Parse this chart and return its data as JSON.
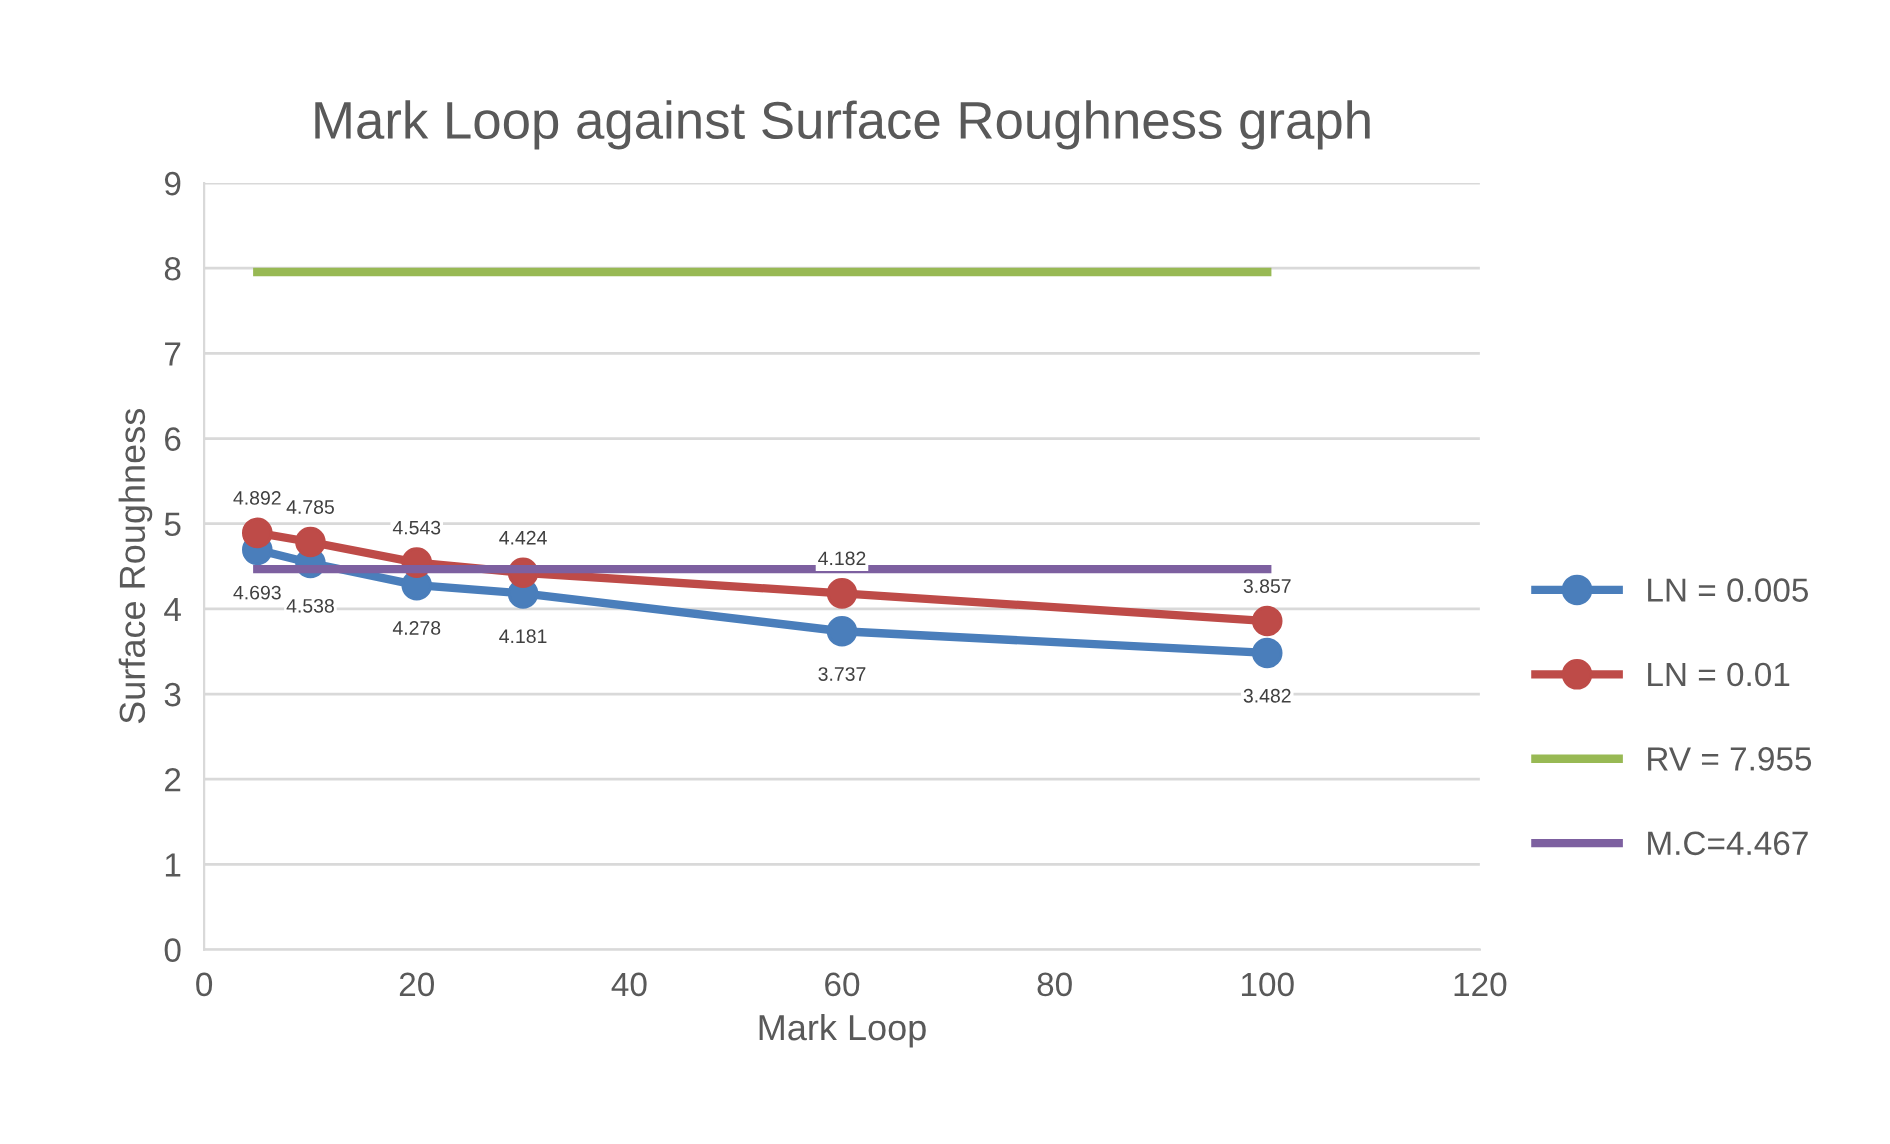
{
  "chart_data": {
    "type": "line",
    "title": "Mark Loop against Surface Roughness graph",
    "xlabel": "Mark Loop",
    "ylabel": "Surface Roughness",
    "xlim": [
      0,
      120
    ],
    "xticks": [
      0,
      20,
      40,
      60,
      80,
      100,
      120
    ],
    "ylim": [
      0,
      9
    ],
    "yticks": [
      0,
      1,
      2,
      3,
      4,
      5,
      6,
      7,
      8,
      9
    ],
    "grid": "y",
    "legend": "right",
    "line_style": "solid",
    "series": [
      {
        "name": "LN = 0.005",
        "color": "#4a7ebb",
        "marker": "circle",
        "x": [
          5,
          10,
          20,
          30,
          60,
          100
        ],
        "values": [
          4.693,
          4.538,
          4.278,
          4.181,
          3.737,
          3.482
        ],
        "value_labels": [
          "4.693",
          "4.538",
          "4.278",
          "4.181",
          "3.737",
          "3.482"
        ]
      },
      {
        "name": "LN = 0.01",
        "color": "#be4b48",
        "marker": "circle",
        "x": [
          5,
          10,
          20,
          30,
          60,
          100
        ],
        "values": [
          4.892,
          4.785,
          4.543,
          4.424,
          4.182,
          3.857
        ],
        "value_labels": [
          "4.892",
          "4.785",
          "4.543",
          "4.424",
          "4.182",
          "3.857"
        ]
      },
      {
        "name": "RV = 7.955",
        "color": "#98b954",
        "marker": "none",
        "x": [
          5,
          100
        ],
        "values": [
          7.955,
          7.955
        ]
      },
      {
        "name": "M.C=4.467",
        "color": "#7d60a0",
        "marker": "none",
        "x": [
          5,
          100
        ],
        "values": [
          4.467,
          4.467
        ]
      }
    ]
  }
}
